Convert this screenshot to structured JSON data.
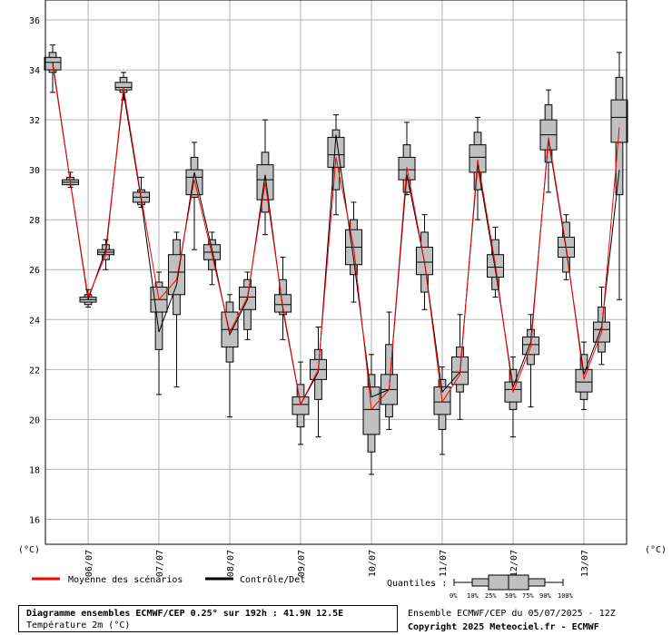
{
  "chart_data": {
    "type": "boxplot",
    "title": "Diagramme ensembles ECMWF/CEP 0.25° sur 192h : 41.9N 12.5E",
    "subtitle": "Température 2m (°C)",
    "ylabel_left": "(°C)",
    "ylabel_right": "(°C)",
    "ylim": [
      15,
      36.8
    ],
    "yticks": [
      16,
      18,
      20,
      22,
      24,
      26,
      28,
      30,
      32,
      34,
      36
    ],
    "xlim": [
      0,
      32
    ],
    "xticks": [
      {
        "x": 2,
        "label": "06/07"
      },
      {
        "x": 6,
        "label": "07/07"
      },
      {
        "x": 10,
        "label": "08/07"
      },
      {
        "x": 14,
        "label": "09/07"
      },
      {
        "x": 18,
        "label": "10/07"
      },
      {
        "x": 22,
        "label": "11/07"
      },
      {
        "x": 26,
        "label": "12/07"
      },
      {
        "x": 30,
        "label": "13/07"
      }
    ],
    "grid": true,
    "boxes": [
      {
        "x": 0,
        "p0": 33.1,
        "p10": 33.9,
        "p25": 34.0,
        "p50": 34.3,
        "p75": 34.5,
        "p90": 34.7,
        "p100": 35.0
      },
      {
        "x": 1,
        "p0": 29.3,
        "p10": 29.4,
        "p25": 29.4,
        "p50": 29.5,
        "p75": 29.6,
        "p90": 29.7,
        "p100": 29.9
      },
      {
        "x": 2,
        "p0": 24.5,
        "p10": 24.6,
        "p25": 24.7,
        "p50": 24.8,
        "p75": 24.9,
        "p90": 25.0,
        "p100": 25.2
      },
      {
        "x": 3,
        "p0": 26.0,
        "p10": 26.4,
        "p25": 26.6,
        "p50": 26.7,
        "p75": 26.8,
        "p90": 27.0,
        "p100": 27.2
      },
      {
        "x": 4,
        "p0": 32.8,
        "p10": 33.1,
        "p25": 33.2,
        "p50": 33.3,
        "p75": 33.5,
        "p90": 33.7,
        "p100": 33.9
      },
      {
        "x": 5,
        "p0": 28.5,
        "p10": 28.6,
        "p25": 28.7,
        "p50": 28.9,
        "p75": 29.1,
        "p90": 29.2,
        "p100": 29.7
      },
      {
        "x": 6,
        "p0": 21.0,
        "p10": 22.8,
        "p25": 24.3,
        "p50": 24.8,
        "p75": 25.3,
        "p90": 25.5,
        "p100": 25.9
      },
      {
        "x": 7,
        "p0": 21.3,
        "p10": 24.2,
        "p25": 25.0,
        "p50": 25.9,
        "p75": 26.6,
        "p90": 27.2,
        "p100": 27.5
      },
      {
        "x": 8,
        "p0": 26.8,
        "p10": 28.9,
        "p25": 29.0,
        "p50": 29.7,
        "p75": 30.0,
        "p90": 30.5,
        "p100": 31.1
      },
      {
        "x": 9,
        "p0": 25.4,
        "p10": 26.0,
        "p25": 26.4,
        "p50": 26.7,
        "p75": 27.0,
        "p90": 27.2,
        "p100": 27.5
      },
      {
        "x": 10,
        "p0": 20.1,
        "p10": 22.3,
        "p25": 22.9,
        "p50": 23.6,
        "p75": 24.3,
        "p90": 24.7,
        "p100": 25.0
      },
      {
        "x": 11,
        "p0": 23.2,
        "p10": 23.6,
        "p25": 24.4,
        "p50": 24.9,
        "p75": 25.3,
        "p90": 25.6,
        "p100": 25.9
      },
      {
        "x": 12,
        "p0": 27.4,
        "p10": 28.3,
        "p25": 28.8,
        "p50": 29.6,
        "p75": 30.2,
        "p90": 30.7,
        "p100": 32.0
      },
      {
        "x": 13,
        "p0": 23.2,
        "p10": 24.2,
        "p25": 24.3,
        "p50": 24.6,
        "p75": 25.0,
        "p90": 25.6,
        "p100": 26.5
      },
      {
        "x": 14,
        "p0": 19.0,
        "p10": 19.7,
        "p25": 20.2,
        "p50": 20.6,
        "p75": 20.9,
        "p90": 21.4,
        "p100": 22.3
      },
      {
        "x": 15,
        "p0": 19.3,
        "p10": 20.8,
        "p25": 21.6,
        "p50": 22.0,
        "p75": 22.4,
        "p90": 22.8,
        "p100": 23.7
      },
      {
        "x": 16,
        "p0": 28.2,
        "p10": 29.2,
        "p25": 30.1,
        "p50": 30.6,
        "p75": 31.3,
        "p90": 31.6,
        "p100": 32.2
      },
      {
        "x": 17,
        "p0": 24.7,
        "p10": 25.8,
        "p25": 26.2,
        "p50": 26.9,
        "p75": 27.6,
        "p90": 28.0,
        "p100": 28.7
      },
      {
        "x": 18,
        "p0": 17.8,
        "p10": 18.7,
        "p25": 19.4,
        "p50": 20.4,
        "p75": 21.3,
        "p90": 21.8,
        "p100": 22.6
      },
      {
        "x": 19,
        "p0": 19.6,
        "p10": 20.1,
        "p25": 20.6,
        "p50": 21.2,
        "p75": 21.8,
        "p90": 23.0,
        "p100": 24.3
      },
      {
        "x": 20,
        "p0": 29.0,
        "p10": 29.1,
        "p25": 29.6,
        "p50": 30.0,
        "p75": 30.5,
        "p90": 31.0,
        "p100": 31.9
      },
      {
        "x": 21,
        "p0": 24.4,
        "p10": 25.1,
        "p25": 25.8,
        "p50": 26.3,
        "p75": 26.9,
        "p90": 27.5,
        "p100": 28.2
      },
      {
        "x": 22,
        "p0": 18.6,
        "p10": 19.6,
        "p25": 20.2,
        "p50": 20.7,
        "p75": 21.3,
        "p90": 21.6,
        "p100": 22.1
      },
      {
        "x": 23,
        "p0": 20.0,
        "p10": 21.1,
        "p25": 21.4,
        "p50": 21.9,
        "p75": 22.5,
        "p90": 22.9,
        "p100": 24.2
      },
      {
        "x": 24,
        "p0": 28.0,
        "p10": 29.2,
        "p25": 29.9,
        "p50": 30.5,
        "p75": 31.0,
        "p90": 31.5,
        "p100": 32.1
      },
      {
        "x": 25,
        "p0": 24.9,
        "p10": 25.2,
        "p25": 25.7,
        "p50": 26.1,
        "p75": 26.6,
        "p90": 27.2,
        "p100": 27.7
      },
      {
        "x": 26,
        "p0": 19.3,
        "p10": 20.4,
        "p25": 20.7,
        "p50": 21.2,
        "p75": 21.5,
        "p90": 22.0,
        "p100": 22.5
      },
      {
        "x": 27,
        "p0": 20.5,
        "p10": 22.2,
        "p25": 22.6,
        "p50": 23.0,
        "p75": 23.3,
        "p90": 23.6,
        "p100": 24.2
      },
      {
        "x": 28,
        "p0": 29.1,
        "p10": 30.3,
        "p25": 30.8,
        "p50": 31.4,
        "p75": 32.0,
        "p90": 32.6,
        "p100": 33.2
      },
      {
        "x": 29,
        "p0": 25.6,
        "p10": 25.9,
        "p25": 26.5,
        "p50": 26.9,
        "p75": 27.3,
        "p90": 27.9,
        "p100": 28.2
      },
      {
        "x": 30,
        "p0": 20.4,
        "p10": 20.8,
        "p25": 21.1,
        "p50": 21.5,
        "p75": 22.0,
        "p90": 22.6,
        "p100": 23.1
      },
      {
        "x": 31,
        "p0": 22.2,
        "p10": 22.7,
        "p25": 23.1,
        "p50": 23.6,
        "p75": 23.9,
        "p90": 24.5,
        "p100": 25.3
      },
      {
        "x": 32,
        "p0": 24.8,
        "p10": 29.0,
        "p25": 31.1,
        "p50": 32.1,
        "p75": 32.8,
        "p90": 33.7,
        "p100": 34.7
      }
    ],
    "series": [
      {
        "name": "Moyenne des scénarios",
        "color": "#ff0000",
        "values": [
          34.2,
          29.5,
          24.9,
          26.6,
          33.3,
          28.9,
          24.8,
          25.6,
          29.6,
          26.6,
          23.5,
          24.9,
          29.5,
          24.5,
          20.6,
          22.0,
          30.5,
          26.9,
          20.4,
          21.2,
          30.1,
          26.3,
          20.7,
          21.8,
          30.4,
          26.2,
          21.1,
          22.9,
          31.3,
          26.9,
          21.6,
          23.5,
          31.7
        ]
      },
      {
        "name": "Contrôle/Det",
        "color": "#000000",
        "values": [
          34.3,
          29.5,
          24.8,
          26.8,
          33.1,
          28.8,
          23.5,
          25.4,
          29.9,
          26.8,
          23.4,
          24.8,
          29.8,
          24.4,
          20.6,
          21.9,
          31.4,
          26.4,
          20.9,
          21.2,
          29.8,
          26.3,
          21.1,
          21.9,
          30.2,
          26.0,
          21.3,
          23.1,
          31.2,
          26.8,
          21.8,
          23.7,
          30.0
        ]
      }
    ],
    "box_fill": "#c0c0c0",
    "legend_placement": "bottom",
    "quantiles_label": "Quantiles :",
    "quantiles_percentages": [
      "0%",
      "10%",
      "25%",
      "50%",
      "75%",
      "90%",
      "100%"
    ]
  },
  "title_box": {
    "line1": "Diagramme ensembles ECMWF/CEP 0.25° sur 192h : 41.9N 12.5E",
    "line2": "Température 2m (°C)"
  },
  "run_info": {
    "ensemble": "Ensemble ECMWF/CEP du 05/07/2025 - 12Z",
    "copyright": "Copyright 2025 Meteociel.fr - ECMWF"
  }
}
